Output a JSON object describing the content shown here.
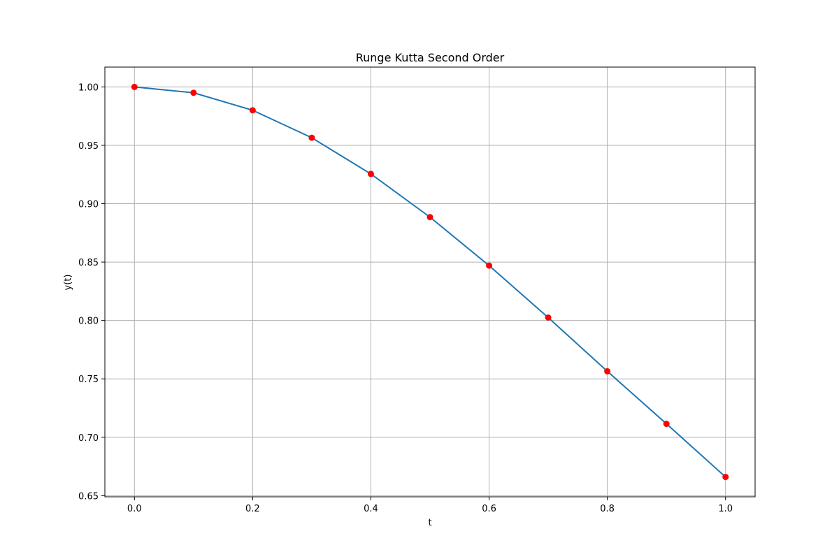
{
  "chart_data": {
    "type": "line",
    "title": "Runge Kutta Second Order",
    "xlabel": "t",
    "ylabel": "y(t)",
    "xlim": [
      -0.05,
      1.05
    ],
    "ylim": [
      0.649,
      1.017
    ],
    "x_ticks": [
      "0.0",
      "0.2",
      "0.4",
      "0.6",
      "0.8",
      "1.0"
    ],
    "y_ticks": [
      "0.65",
      "0.70",
      "0.75",
      "0.80",
      "0.85",
      "0.90",
      "0.95",
      "1.00"
    ],
    "grid": true,
    "series": [
      {
        "x": [
          0.0,
          0.1,
          0.2,
          0.3,
          0.4,
          0.5,
          0.6,
          0.7,
          0.8,
          0.9,
          1.0
        ],
        "values": [
          1.0,
          0.995,
          0.98,
          0.9565,
          0.9255,
          0.8885,
          0.847,
          0.8025,
          0.7565,
          0.7115,
          0.666
        ],
        "line_color": "#1f77b4",
        "marker_color": "#ff0000"
      }
    ]
  }
}
